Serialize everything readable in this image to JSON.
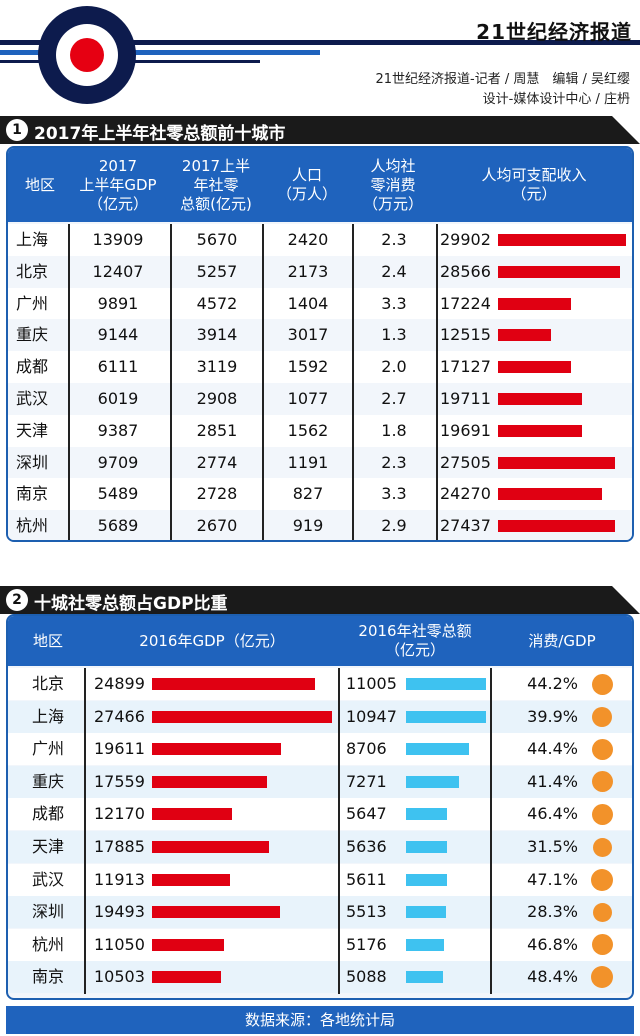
{
  "header": {
    "brand": "21世纪经济报道",
    "credit_line1": "21世纪经济报道-记者 / 周慧　编辑 / 吴红缨",
    "credit_line2": "设计-媒体设计中心 / 庄枬",
    "colors": {
      "navy": "#0d1b4d",
      "red": "#e60012",
      "blue": "#1f63bd"
    }
  },
  "section1": {
    "number": "1",
    "title": "2017年上半年社零总额前十城市",
    "headers": [
      "地区",
      "2017\n上半年GDP\n（亿元）",
      "2017上半\n年社零\n总额(亿元)",
      "人口\n（万人）",
      "人均社\n零消费\n（万元）",
      "人均可支配收入\n（元）"
    ]
  },
  "section2": {
    "number": "2",
    "title": "十城社零总额占GDP比重",
    "headers": [
      "地区",
      "2016年GDP（亿元）",
      "2016年社零总额\n（亿元）",
      "消费/GDP"
    ]
  },
  "footer": {
    "source": "数据来源：各地统计局"
  },
  "chart_data": [
    {
      "type": "table",
      "title": "2017年上半年社零总额前十城市",
      "columns": [
        "地区",
        "2017上半年GDP（亿元）",
        "2017上半年社零总额(亿元)",
        "人口（万人）",
        "人均社零消费（万元）",
        "人均可支配收入（元）"
      ],
      "rows": [
        [
          "上海",
          "13909",
          "5670",
          "2420",
          "2.3",
          "29902"
        ],
        [
          "北京",
          "12407",
          "5257",
          "2173",
          "2.4",
          "28566"
        ],
        [
          "广州",
          "9891",
          "4572",
          "1404",
          "3.3",
          "17224"
        ],
        [
          "重庆",
          "9144",
          "3914",
          "3017",
          "1.3",
          "12515"
        ],
        [
          "成都",
          "6111",
          "3119",
          "1592",
          "2.0",
          "17127"
        ],
        [
          "武汉",
          "6019",
          "2908",
          "1077",
          "2.7",
          "19711"
        ],
        [
          "天津",
          "9387",
          "2851",
          "1562",
          "1.8",
          "19691"
        ],
        [
          "深圳",
          "9709",
          "2774",
          "1191",
          "2.3",
          "27505"
        ],
        [
          "南京",
          "5489",
          "2728",
          "827",
          "3.3",
          "24270"
        ],
        [
          "杭州",
          "5689",
          "2670",
          "919",
          "2.9",
          "27437"
        ]
      ],
      "bar_column": "人均可支配收入（元）",
      "bar_max": 30000
    },
    {
      "type": "table",
      "title": "十城社零总额占GDP比重",
      "columns": [
        "地区",
        "2016年GDP（亿元）",
        "2016年社零总额（亿元）",
        "消费/GDP"
      ],
      "rows": [
        [
          "北京",
          "24899",
          "11005",
          "44.2%"
        ],
        [
          "上海",
          "27466",
          "10947",
          "39.9%"
        ],
        [
          "广州",
          "19611",
          "8706",
          "44.4%"
        ],
        [
          "重庆",
          "17559",
          "7271",
          "41.4%"
        ],
        [
          "成都",
          "12170",
          "5647",
          "46.4%"
        ],
        [
          "天津",
          "17885",
          "5636",
          "31.5%"
        ],
        [
          "武汉",
          "11913",
          "5611",
          "47.1%"
        ],
        [
          "深圳",
          "19493",
          "5513",
          "28.3%"
        ],
        [
          "杭州",
          "11050",
          "5176",
          "46.8%"
        ],
        [
          "南京",
          "10503",
          "5088",
          "48.4%"
        ]
      ],
      "gdp_bar_max": 27466,
      "retail_bar_max": 11005
    }
  ]
}
